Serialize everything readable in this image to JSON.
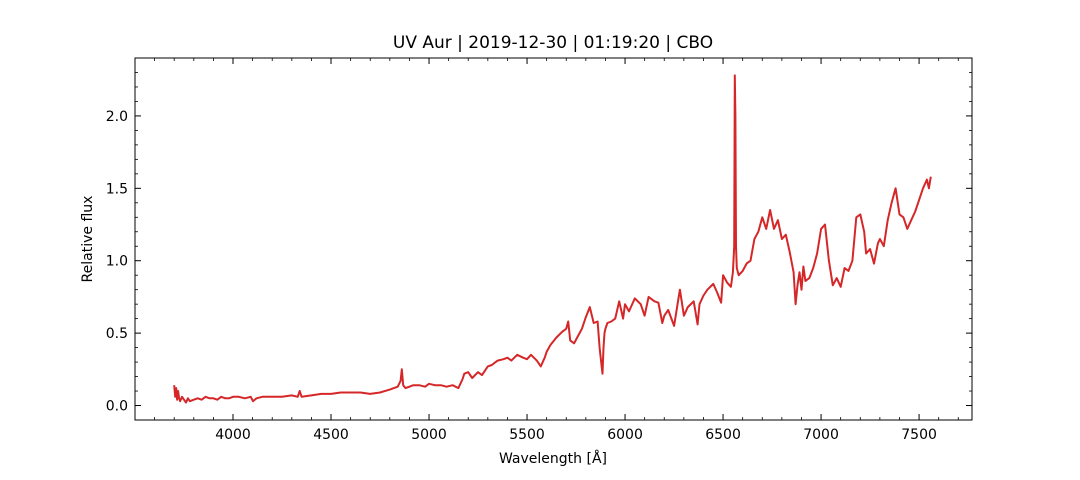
{
  "chart_data": {
    "type": "line",
    "title": "UV Aur | 2019-12-30 | 01:19:20 | CBO",
    "xlabel": "Wavelength [Å]",
    "ylabel": "Relative flux",
    "xlim": [
      3500,
      7770
    ],
    "ylim": [
      -0.1,
      2.4
    ],
    "x_ticks": [
      4000,
      4500,
      5000,
      5500,
      6000,
      6500,
      7000,
      7500
    ],
    "x_tick_labels": [
      "4000",
      "4500",
      "5000",
      "5500",
      "6000",
      "6500",
      "7000",
      "7500"
    ],
    "y_ticks": [
      0.0,
      0.5,
      1.0,
      1.5,
      2.0
    ],
    "y_tick_labels": [
      "0.0",
      "0.5",
      "1.0",
      "1.5",
      "2.0"
    ],
    "x_minor_step": 100,
    "y_minor_step": 0.1,
    "grid": false,
    "line_color": "#d62728",
    "series": [
      {
        "x": [
          3700,
          3705,
          3710,
          3715,
          3720,
          3725,
          3730,
          3740,
          3750,
          3760,
          3770,
          3780,
          3800,
          3820,
          3840,
          3860,
          3880,
          3900,
          3920,
          3940,
          3960,
          3980,
          4000,
          4030,
          4060,
          4090,
          4102,
          4120,
          4150,
          4200,
          4250,
          4300,
          4330,
          4340,
          4350,
          4400,
          4450,
          4500,
          4550,
          4600,
          4650,
          4700,
          4750,
          4800,
          4840,
          4855,
          4861,
          4868,
          4880,
          4900,
          4920,
          4950,
          4980,
          5000,
          5030,
          5060,
          5090,
          5120,
          5150,
          5170,
          5180,
          5200,
          5220,
          5250,
          5270,
          5300,
          5320,
          5350,
          5380,
          5400,
          5420,
          5450,
          5480,
          5500,
          5520,
          5550,
          5570,
          5590,
          5600,
          5620,
          5650,
          5680,
          5700,
          5710,
          5720,
          5740,
          5760,
          5780,
          5800,
          5820,
          5840,
          5860,
          5870,
          5880,
          5885,
          5890,
          5895,
          5900,
          5910,
          5930,
          5950,
          5970,
          5990,
          6000,
          6020,
          6050,
          6080,
          6100,
          6120,
          6150,
          6170,
          6190,
          6200,
          6220,
          6250,
          6270,
          6280,
          6300,
          6320,
          6350,
          6370,
          6380,
          6400,
          6420,
          6450,
          6470,
          6490,
          6500,
          6520,
          6540,
          6550,
          6557,
          6560,
          6563,
          6566,
          6570,
          6580,
          6600,
          6620,
          6640,
          6660,
          6680,
          6700,
          6720,
          6740,
          6760,
          6780,
          6800,
          6820,
          6840,
          6860,
          6870,
          6880,
          6890,
          6900,
          6910,
          6920,
          6940,
          6960,
          6980,
          7000,
          7020,
          7040,
          7060,
          7080,
          7100,
          7120,
          7140,
          7160,
          7180,
          7200,
          7220,
          7230,
          7250,
          7270,
          7290,
          7300,
          7320,
          7340,
          7360,
          7380,
          7400,
          7420,
          7440,
          7460,
          7480,
          7500,
          7520,
          7540,
          7550,
          7560
        ],
        "y": [
          0.14,
          0.06,
          0.12,
          0.04,
          0.1,
          0.05,
          0.03,
          0.06,
          0.04,
          0.02,
          0.05,
          0.03,
          0.04,
          0.05,
          0.04,
          0.06,
          0.05,
          0.05,
          0.04,
          0.06,
          0.05,
          0.05,
          0.06,
          0.06,
          0.05,
          0.06,
          0.03,
          0.05,
          0.06,
          0.06,
          0.06,
          0.07,
          0.06,
          0.1,
          0.06,
          0.07,
          0.08,
          0.08,
          0.09,
          0.09,
          0.09,
          0.08,
          0.09,
          0.11,
          0.13,
          0.17,
          0.25,
          0.14,
          0.12,
          0.13,
          0.14,
          0.14,
          0.13,
          0.15,
          0.14,
          0.14,
          0.13,
          0.14,
          0.12,
          0.18,
          0.22,
          0.23,
          0.19,
          0.23,
          0.21,
          0.27,
          0.28,
          0.31,
          0.32,
          0.33,
          0.31,
          0.35,
          0.33,
          0.32,
          0.35,
          0.31,
          0.27,
          0.33,
          0.37,
          0.42,
          0.47,
          0.51,
          0.53,
          0.58,
          0.45,
          0.43,
          0.48,
          0.53,
          0.61,
          0.68,
          0.57,
          0.58,
          0.4,
          0.28,
          0.22,
          0.4,
          0.5,
          0.53,
          0.57,
          0.58,
          0.6,
          0.72,
          0.6,
          0.7,
          0.65,
          0.74,
          0.7,
          0.62,
          0.75,
          0.72,
          0.71,
          0.57,
          0.62,
          0.66,
          0.55,
          0.72,
          0.8,
          0.62,
          0.68,
          0.72,
          0.56,
          0.7,
          0.76,
          0.8,
          0.84,
          0.78,
          0.71,
          0.9,
          0.85,
          0.82,
          0.92,
          1.1,
          2.28,
          2.0,
          1.1,
          0.95,
          0.9,
          0.93,
          0.98,
          1.0,
          1.15,
          1.2,
          1.3,
          1.22,
          1.35,
          1.22,
          1.28,
          1.15,
          1.18,
          1.06,
          0.92,
          0.7,
          0.83,
          0.92,
          0.8,
          0.96,
          0.86,
          0.88,
          0.95,
          1.05,
          1.22,
          1.25,
          1.0,
          0.83,
          0.88,
          0.82,
          0.95,
          0.93,
          1.0,
          1.3,
          1.32,
          1.2,
          1.05,
          1.08,
          0.98,
          1.12,
          1.15,
          1.1,
          1.28,
          1.4,
          1.5,
          1.32,
          1.3,
          1.22,
          1.28,
          1.34,
          1.42,
          1.5,
          1.56,
          1.5,
          1.58
        ]
      }
    ]
  }
}
